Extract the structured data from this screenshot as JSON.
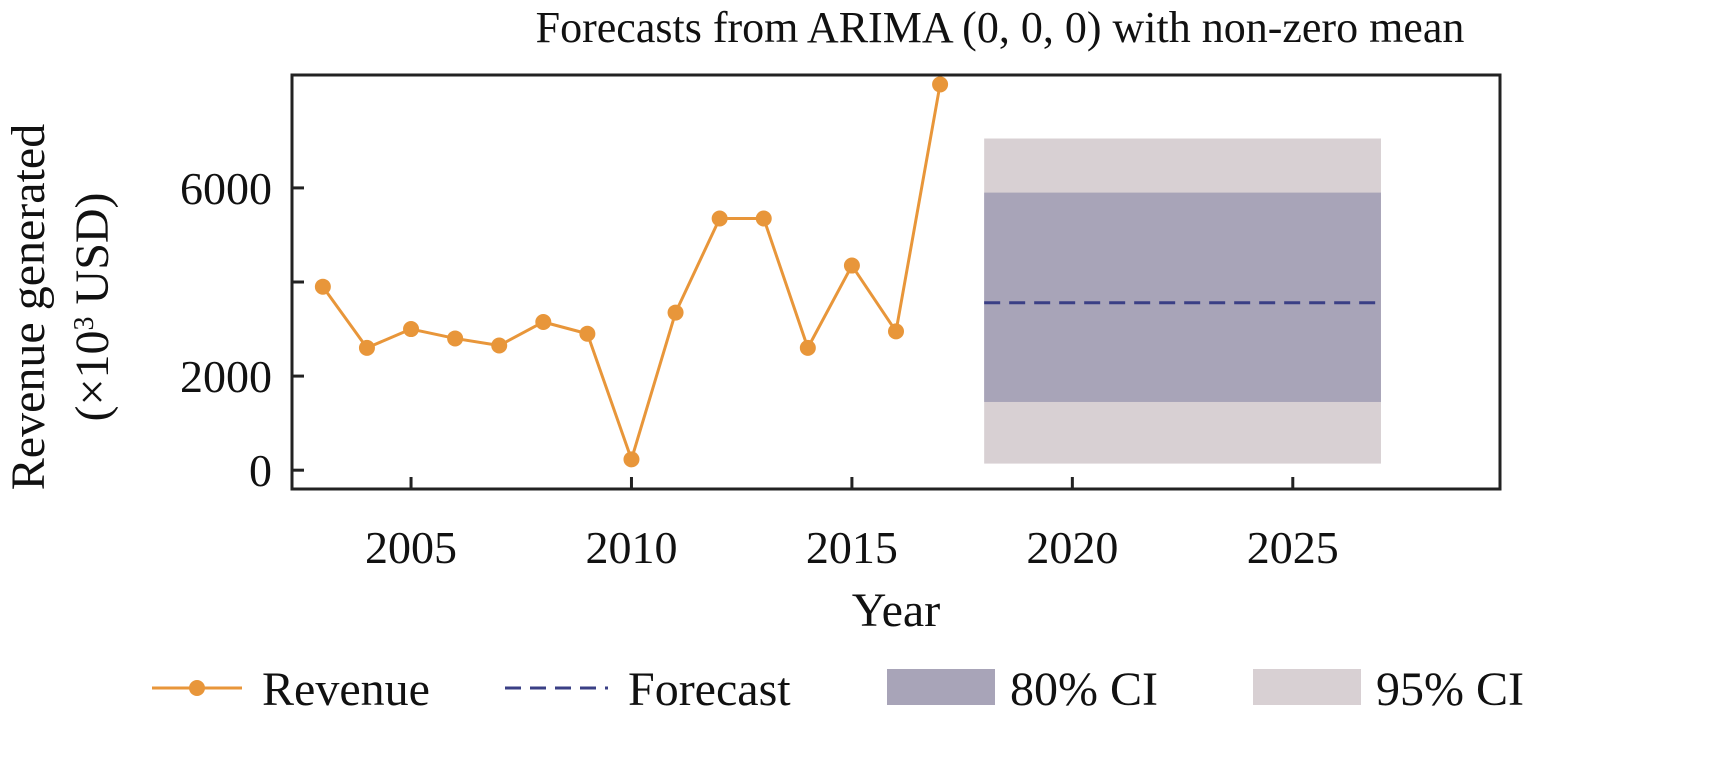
{
  "chart_data": {
    "type": "line",
    "title": "Forecasts from ARIMA (0, 0, 0) with non-zero mean",
    "xlabel": "Year",
    "ylabel_line1": "Revenue generated",
    "ylabel_line2_prefix": "(×10",
    "ylabel_line2_sup": "3",
    "ylabel_line2_suffix": " USD)",
    "xlim": [
      2002.3,
      2029.7
    ],
    "ylim": [
      -400,
      8400
    ],
    "xticks": [
      2005,
      2010,
      2015,
      2020,
      2025
    ],
    "yticks": [
      0,
      2000,
      4000,
      6000
    ],
    "ytick_labels": [
      "0",
      "2000",
      "",
      "6000"
    ],
    "series": [
      {
        "name": "Revenue",
        "color": "#E8963A",
        "x": [
          2003,
          2004,
          2005,
          2006,
          2007,
          2008,
          2009,
          2010,
          2011,
          2012,
          2013,
          2014,
          2015,
          2016,
          2017
        ],
        "y": [
          3900,
          2600,
          3000,
          2800,
          2650,
          3150,
          2900,
          230,
          3350,
          5350,
          5350,
          2600,
          4350,
          2950,
          8200
        ]
      }
    ],
    "forecast": {
      "name": "Forecast",
      "color": "#3A3F85",
      "x_start": 2018,
      "x_end": 2027,
      "value": 3560,
      "ci80": {
        "label": "80% CI",
        "lower": 1450,
        "upper": 5900,
        "color": "#A8A4B8"
      },
      "ci95": {
        "label": "95% CI",
        "lower": 140,
        "upper": 7050,
        "color": "#D8D0D3"
      }
    },
    "legend": {
      "placement": "bottom",
      "entries": [
        "Revenue",
        "Forecast",
        "80% CI",
        "95% CI"
      ]
    },
    "grid": false
  }
}
